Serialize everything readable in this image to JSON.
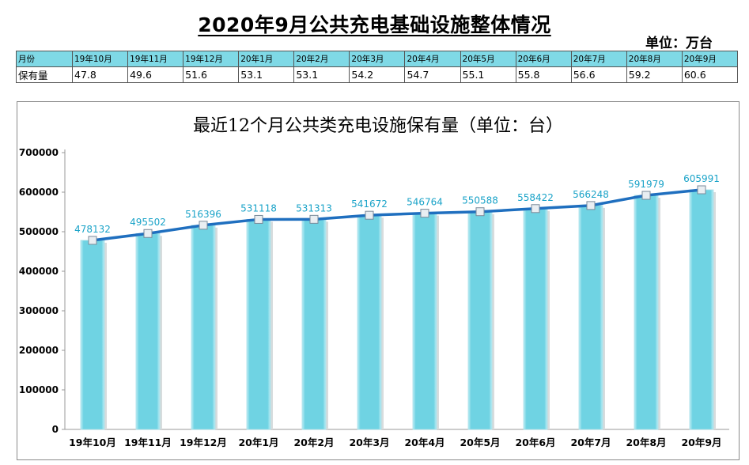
{
  "header": {
    "title": "2020年9月公共充电基础设施整体情况",
    "unit": "单位：万台"
  },
  "summary_table": {
    "row_label_months": "月份",
    "row_label_values": "保有量",
    "months": [
      "19年10月",
      "19年11月",
      "19年12月",
      "20年1月",
      "20年2月",
      "20年3月",
      "20年4月",
      "20年5月",
      "20年6月",
      "20年7月",
      "20年8月",
      "20年9月"
    ],
    "values": [
      "47.8",
      "49.6",
      "51.6",
      "53.1",
      "53.1",
      "54.2",
      "54.7",
      "55.1",
      "55.8",
      "56.6",
      "59.2",
      "60.6"
    ]
  },
  "colors": {
    "bar": "#6fd3e3",
    "bar_edge": "#bfeef5",
    "line": "#1f6fbf",
    "data_label": "#1aa3c8",
    "table_header": "#7fd9e6"
  },
  "chart_data": {
    "type": "bar",
    "title": "最近12个月公共类充电设施保有量（单位：台）",
    "categories": [
      "19年10月",
      "19年11月",
      "19年12月",
      "20年1月",
      "20年2月",
      "20年3月",
      "20年4月",
      "20年5月",
      "20年6月",
      "20年7月",
      "20年8月",
      "20年9月"
    ],
    "values": [
      478132,
      495502,
      516396,
      531118,
      531313,
      541672,
      546764,
      550588,
      558422,
      566248,
      591979,
      605991
    ],
    "overlay": "line",
    "ylim": [
      0,
      700000
    ],
    "yticks": [
      0,
      100000,
      200000,
      300000,
      400000,
      500000,
      600000,
      700000
    ],
    "xlabel": "",
    "ylabel": "",
    "grid": false,
    "legend": "none"
  }
}
